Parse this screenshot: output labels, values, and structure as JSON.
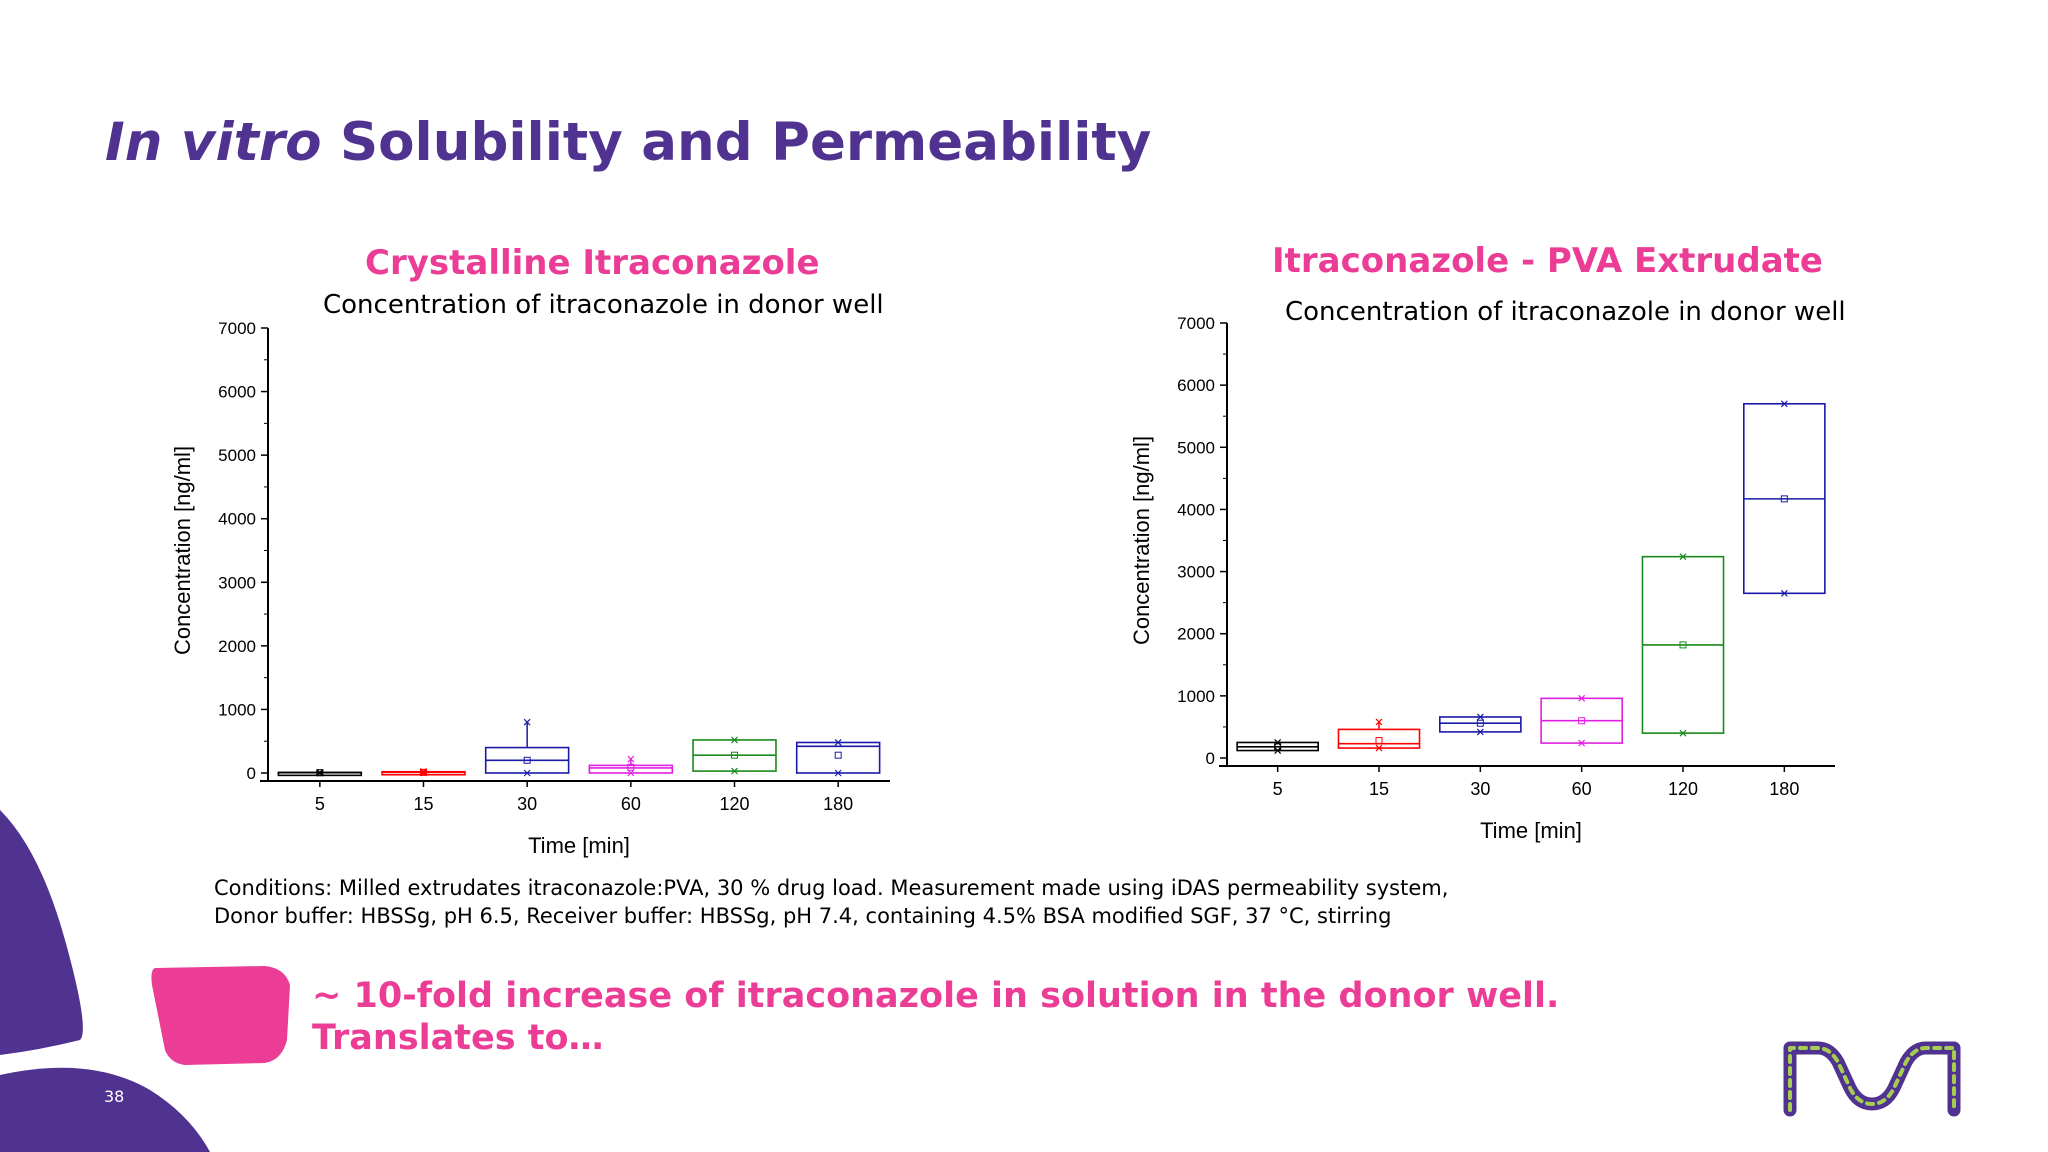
{
  "slide": {
    "title_italic": "In vitro",
    "title_rest": "Solubility and Permeability",
    "conditions_line1": "Conditions: Milled extrudates itraconazole:PVA, 30 % drug load. Measurement made using iDAS permeability system,",
    "conditions_line2": "Donor buffer: HBSSg, pH 6.5, Receiver buffer: HBSSg, pH 7.4, containing 4.5% BSA modified SGF, 37 °C, stirring",
    "takeaway_line1": "~ 10-fold increase of itraconazole in solution in the donor well.",
    "takeaway_line2": "Translates to…",
    "page_number": "38",
    "colors": {
      "purple": "#503291",
      "pink": "#eb3c96"
    }
  },
  "chart_data": [
    {
      "type": "box",
      "heading": "Crystalline Itraconazole",
      "title": "Concentration of itraconazole in donor well",
      "xlabel": "Time [min]",
      "ylabel": "Concentration [ng/ml]",
      "ylim": [
        0,
        7000
      ],
      "yticks": [
        0,
        1000,
        2000,
        3000,
        4000,
        5000,
        6000,
        7000
      ],
      "categories": [
        "5",
        "15",
        "30",
        "60",
        "120",
        "180"
      ],
      "boxes": [
        {
          "q1": 0,
          "median": 5,
          "q3": 10,
          "mean": 5,
          "min": 0,
          "max": 10,
          "color": "#000000"
        },
        {
          "q1": 0,
          "median": 10,
          "q3": 20,
          "mean": 10,
          "min": 0,
          "max": 25,
          "color": "#ff0000"
        },
        {
          "q1": 0,
          "median": 200,
          "q3": 400,
          "mean": 200,
          "min": 0,
          "max": 800,
          "color": "#1a1aa8"
        },
        {
          "q1": 0,
          "median": 80,
          "q3": 120,
          "mean": 90,
          "min": 0,
          "max": 220,
          "color": "#e020e0"
        },
        {
          "q1": 30,
          "median": 280,
          "q3": 520,
          "mean": 280,
          "min": 30,
          "max": 520,
          "color": "#1a8a1a"
        },
        {
          "q1": 0,
          "median": 420,
          "q3": 480,
          "mean": 280,
          "min": 0,
          "max": 480,
          "color": "#1a1aa8"
        }
      ]
    },
    {
      "type": "box",
      "heading": "Itraconazole - PVA Extrudate",
      "title": "Concentration of itraconazole in donor well",
      "xlabel": "Time [min]",
      "ylabel": "Concentration [ng/ml]",
      "ylim": [
        0,
        7000
      ],
      "yticks": [
        0,
        1000,
        2000,
        3000,
        4000,
        5000,
        6000,
        7000
      ],
      "categories": [
        "5",
        "15",
        "30",
        "60",
        "120",
        "180"
      ],
      "boxes": [
        {
          "q1": 120,
          "median": 180,
          "q3": 250,
          "mean": 180,
          "min": 120,
          "max": 250,
          "color": "#000000"
        },
        {
          "q1": 160,
          "median": 230,
          "q3": 460,
          "mean": 280,
          "min": 160,
          "max": 580,
          "color": "#ff0000"
        },
        {
          "q1": 420,
          "median": 560,
          "q3": 660,
          "mean": 560,
          "min": 420,
          "max": 660,
          "color": "#1a1aa8"
        },
        {
          "q1": 240,
          "median": 600,
          "q3": 960,
          "mean": 600,
          "min": 240,
          "max": 960,
          "color": "#e020e0"
        },
        {
          "q1": 400,
          "median": 1820,
          "q3": 3240,
          "mean": 1820,
          "min": 400,
          "max": 3240,
          "color": "#1a8a1a"
        },
        {
          "q1": 2650,
          "median": 4170,
          "q3": 5700,
          "mean": 4170,
          "min": 2650,
          "max": 5700,
          "color": "#1a1aa8"
        }
      ]
    }
  ]
}
